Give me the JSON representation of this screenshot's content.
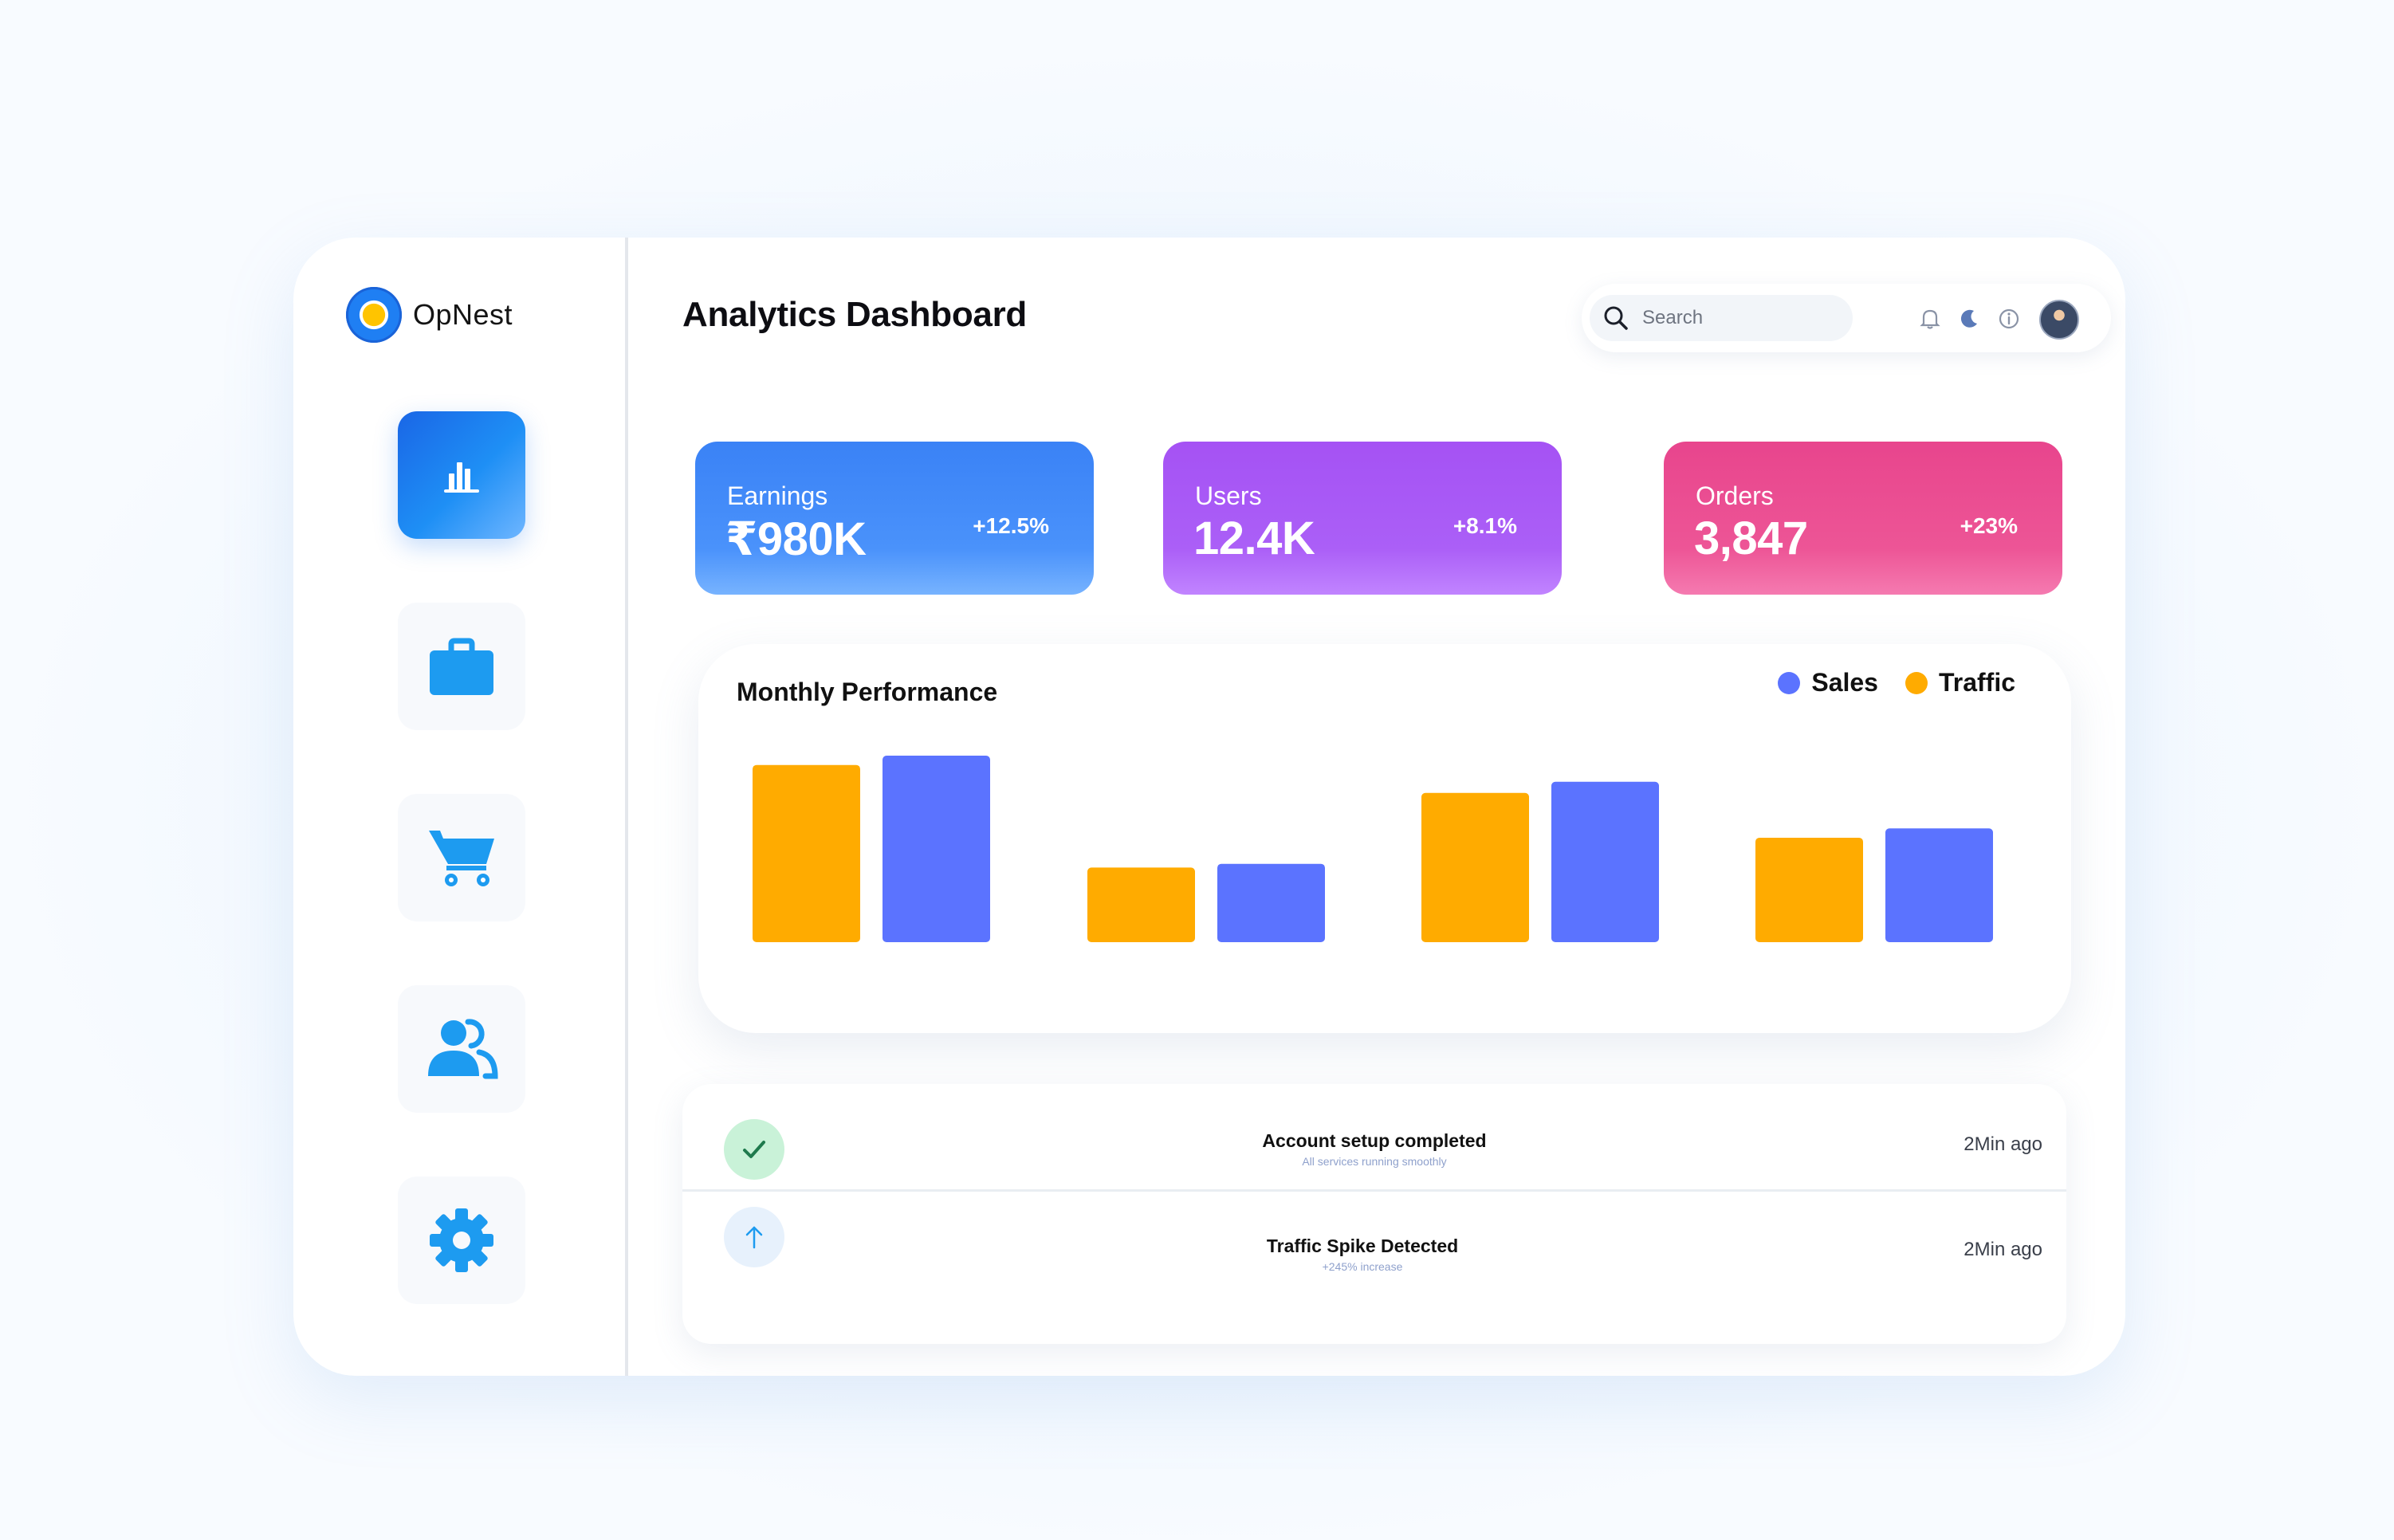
{
  "brand": {
    "name": "OpNest"
  },
  "header": {
    "title": "Analytics Dashboard",
    "search": {
      "placeholder": "Search",
      "value": ""
    }
  },
  "icons": {
    "nav": [
      "bar-chart-icon",
      "briefcase-icon",
      "cart-icon",
      "users-icon",
      "gear-icon"
    ],
    "topbar": [
      "bell-icon",
      "moon-icon",
      "info-icon",
      "avatar"
    ]
  },
  "stats": [
    {
      "label": "Earnings",
      "value": "₹980K",
      "delta": "+12.5%",
      "color": "#3b82f6"
    },
    {
      "label": "Users",
      "value": "12.4K",
      "delta": "+8.1%",
      "color": "#a855f7"
    },
    {
      "label": "Orders",
      "value": "3,847",
      "delta": "+23%",
      "color": "#ec4899"
    }
  ],
  "chart_data": {
    "type": "bar",
    "title": "Monthly Performance",
    "categories": [
      "",
      "",
      "",
      ""
    ],
    "series": [
      {
        "name": "Traffic",
        "color": "#FFAB00",
        "values": [
          95,
          40,
          80,
          56
        ]
      },
      {
        "name": "Sales",
        "color": "#5B73FF",
        "values": [
          100,
          42,
          86,
          61
        ]
      }
    ],
    "legend": [
      "Sales",
      "Traffic"
    ],
    "legend_colors": [
      "#5B73FF",
      "#FFAB00"
    ],
    "legend_position": "top-right",
    "ylim": [
      0,
      100
    ],
    "grid": false
  },
  "activity": [
    {
      "title": "Account setup completed",
      "subtitle": "All services running smoothly",
      "time": "2Min ago",
      "icon": "check-icon"
    },
    {
      "title": "Traffic Spike Detected",
      "subtitle": "+245% increase",
      "time": "2Min ago",
      "icon": "arrow-up-icon"
    }
  ]
}
